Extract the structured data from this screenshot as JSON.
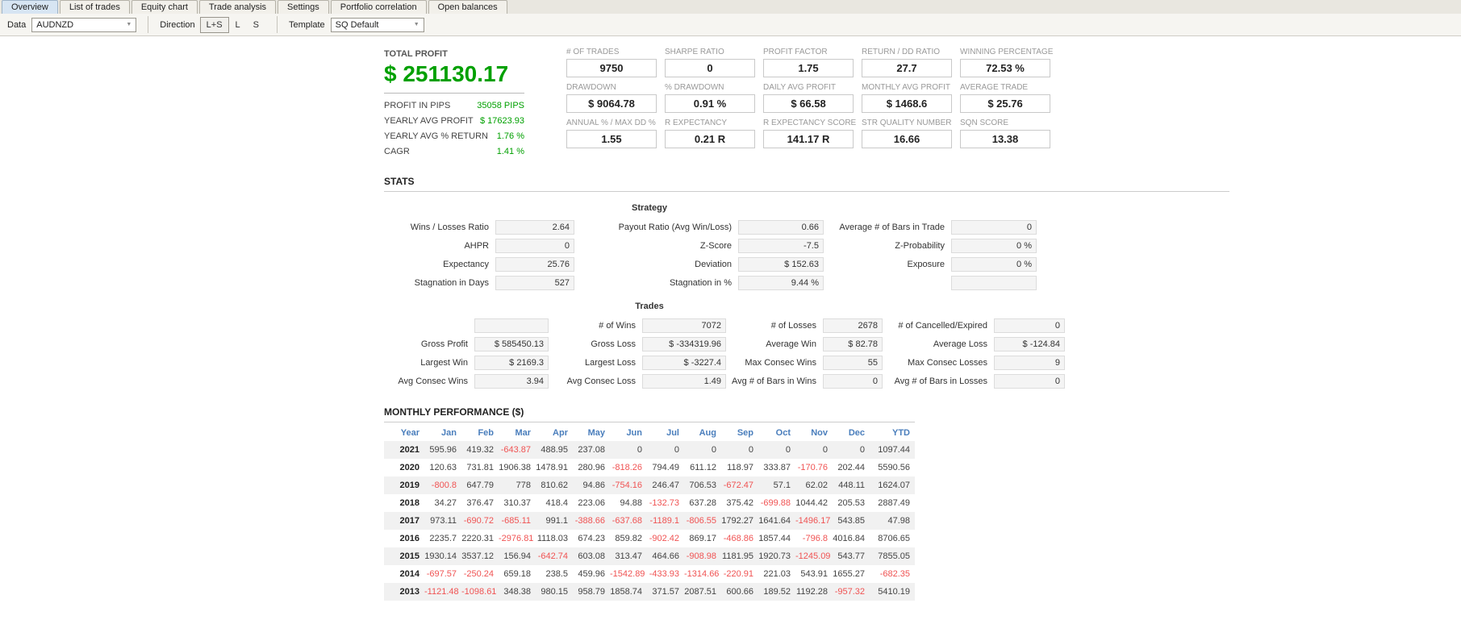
{
  "tabs": {
    "items": [
      {
        "label": "Overview",
        "active": true
      },
      {
        "label": "List of trades",
        "active": false
      },
      {
        "label": "Equity chart",
        "active": false
      },
      {
        "label": "Trade analysis",
        "active": false
      },
      {
        "label": "Settings",
        "active": false
      },
      {
        "label": "Portfolio correlation",
        "active": false
      },
      {
        "label": "Open balances",
        "active": false
      }
    ]
  },
  "toolbar": {
    "data": {
      "label": "Data",
      "value": "AUDNZD"
    },
    "direction": {
      "label": "Direction",
      "options": [
        "L+S",
        "L",
        "S"
      ],
      "selected": "L+S"
    },
    "template": {
      "label": "Template",
      "value": "SQ Default"
    }
  },
  "summary": {
    "total_profit": {
      "label": "TOTAL PROFIT",
      "value": "$ 251130.17"
    },
    "details": [
      {
        "label": "PROFIT IN PIPS",
        "value": "35058 PIPS"
      },
      {
        "label": "YEARLY AVG PROFIT",
        "value": "$ 17623.93"
      },
      {
        "label": "YEARLY AVG % RETURN",
        "value": "1.76 %"
      },
      {
        "label": "CAGR",
        "value": "1.41 %"
      }
    ],
    "metrics": [
      [
        {
          "label": "# OF TRADES",
          "value": "9750"
        },
        {
          "label": "SHARPE RATIO",
          "value": "0"
        },
        {
          "label": "PROFIT FACTOR",
          "value": "1.75"
        },
        {
          "label": "RETURN / DD RATIO",
          "value": "27.7"
        },
        {
          "label": "WINNING PERCENTAGE",
          "value": "72.53 %"
        }
      ],
      [
        {
          "label": "DRAWDOWN",
          "value": "$ 9064.78"
        },
        {
          "label": "% DRAWDOWN",
          "value": "0.91 %"
        },
        {
          "label": "DAILY AVG PROFIT",
          "value": "$ 66.58"
        },
        {
          "label": "MONTHLY AVG PROFIT",
          "value": "$ 1468.6"
        },
        {
          "label": "AVERAGE TRADE",
          "value": "$ 25.76"
        }
      ],
      [
        {
          "label": "ANNUAL % / MAX DD %",
          "value": "1.55"
        },
        {
          "label": "R EXPECTANCY",
          "value": "0.21 R"
        },
        {
          "label": "R EXPECTANCY SCORE",
          "value": "141.17 R"
        },
        {
          "label": "STR QUALITY NUMBER",
          "value": "16.66"
        },
        {
          "label": "SQN SCORE",
          "value": "13.38"
        }
      ]
    ]
  },
  "stats": {
    "title": "STATS",
    "groups": [
      {
        "title": "Strategy",
        "rows": [
          [
            {
              "label": "Wins / Losses Ratio",
              "value": "2.64"
            },
            {
              "label": "Payout Ratio (Avg Win/Loss)",
              "value": "0.66"
            },
            {
              "label": "Average # of Bars in Trade",
              "value": "0"
            }
          ],
          [
            {
              "label": "AHPR",
              "value": "0"
            },
            {
              "label": "Z-Score",
              "value": "-7.5"
            },
            {
              "label": "Z-Probability",
              "value": "0 %"
            }
          ],
          [
            {
              "label": "Expectancy",
              "value": "25.76"
            },
            {
              "label": "Deviation",
              "value": "$ 152.63"
            },
            {
              "label": "Exposure",
              "value": "0 %"
            }
          ],
          [
            {
              "label": "Stagnation in Days",
              "value": "527"
            },
            {
              "label": "Stagnation in %",
              "value": "9.44 %"
            },
            {
              "label": "",
              "value": ""
            }
          ]
        ]
      },
      {
        "title": "Trades",
        "rows": [
          [
            {
              "label": "",
              "value": ""
            },
            {
              "label": "# of Wins",
              "value": "7072"
            },
            {
              "label": "# of Losses",
              "value": "2678"
            },
            {
              "label": "# of Cancelled/Expired",
              "value": "0"
            }
          ],
          [
            {
              "label": "Gross Profit",
              "value": "$ 585450.13"
            },
            {
              "label": "Gross Loss",
              "value": "$ -334319.96"
            },
            {
              "label": "Average Win",
              "value": "$ 82.78"
            },
            {
              "label": "Average Loss",
              "value": "$ -124.84"
            }
          ],
          [
            {
              "label": "Largest Win",
              "value": "$ 2169.3"
            },
            {
              "label": "Largest Loss",
              "value": "$ -3227.4"
            },
            {
              "label": "Max Consec Wins",
              "value": "55"
            },
            {
              "label": "Max Consec Losses",
              "value": "9"
            }
          ],
          [
            {
              "label": "Avg Consec Wins",
              "value": "3.94"
            },
            {
              "label": "Avg Consec Loss",
              "value": "1.49"
            },
            {
              "label": "Avg # of Bars in Wins",
              "value": "0"
            },
            {
              "label": "Avg # of Bars in Losses",
              "value": "0"
            }
          ]
        ]
      }
    ]
  },
  "monthly_performance": {
    "title": "MONTHLY PERFORMANCE ($)",
    "columns": [
      "Year",
      "Jan",
      "Feb",
      "Mar",
      "Apr",
      "May",
      "Jun",
      "Jul",
      "Aug",
      "Sep",
      "Oct",
      "Nov",
      "Dec",
      "YTD"
    ],
    "rows": [
      {
        "year": "2021",
        "values": [
          "595.96",
          "419.32",
          "-643.87",
          "488.95",
          "237.08",
          "0",
          "0",
          "0",
          "0",
          "0",
          "0",
          "0",
          "1097.44"
        ]
      },
      {
        "year": "2020",
        "values": [
          "120.63",
          "731.81",
          "1906.38",
          "1478.91",
          "280.96",
          "-818.26",
          "794.49",
          "611.12",
          "118.97",
          "333.87",
          "-170.76",
          "202.44",
          "5590.56"
        ]
      },
      {
        "year": "2019",
        "values": [
          "-800.8",
          "647.79",
          "778",
          "810.62",
          "94.86",
          "-754.16",
          "246.47",
          "706.53",
          "-672.47",
          "57.1",
          "62.02",
          "448.11",
          "1624.07"
        ]
      },
      {
        "year": "2018",
        "values": [
          "34.27",
          "376.47",
          "310.37",
          "418.4",
          "223.06",
          "94.88",
          "-132.73",
          "637.28",
          "375.42",
          "-699.88",
          "1044.42",
          "205.53",
          "2887.49"
        ]
      },
      {
        "year": "2017",
        "values": [
          "973.11",
          "-690.72",
          "-685.11",
          "991.1",
          "-388.66",
          "-637.68",
          "-1189.1",
          "-806.55",
          "1792.27",
          "1641.64",
          "-1496.17",
          "543.85",
          "47.98"
        ]
      },
      {
        "year": "2016",
        "values": [
          "2235.7",
          "2220.31",
          "-2976.81",
          "1118.03",
          "674.23",
          "859.82",
          "-902.42",
          "869.17",
          "-468.86",
          "1857.44",
          "-796.8",
          "4016.84",
          "8706.65"
        ]
      },
      {
        "year": "2015",
        "values": [
          "1930.14",
          "3537.12",
          "156.94",
          "-642.74",
          "603.08",
          "313.47",
          "464.66",
          "-908.98",
          "1181.95",
          "1920.73",
          "-1245.09",
          "543.77",
          "7855.05"
        ]
      },
      {
        "year": "2014",
        "values": [
          "-697.57",
          "-250.24",
          "659.18",
          "238.5",
          "459.96",
          "-1542.89",
          "-433.93",
          "-1314.66",
          "-220.91",
          "221.03",
          "543.91",
          "1655.27",
          "-682.35"
        ]
      },
      {
        "year": "2013",
        "values": [
          "-1121.48",
          "-1098.61",
          "348.38",
          "980.15",
          "958.79",
          "1858.74",
          "371.57",
          "2087.51",
          "600.66",
          "189.52",
          "1192.28",
          "-957.32",
          "5410.19"
        ]
      }
    ]
  },
  "colors": {
    "profit_green": "#00a000",
    "negative_red": "#f05353",
    "header_blue": "#4a7ebc"
  }
}
